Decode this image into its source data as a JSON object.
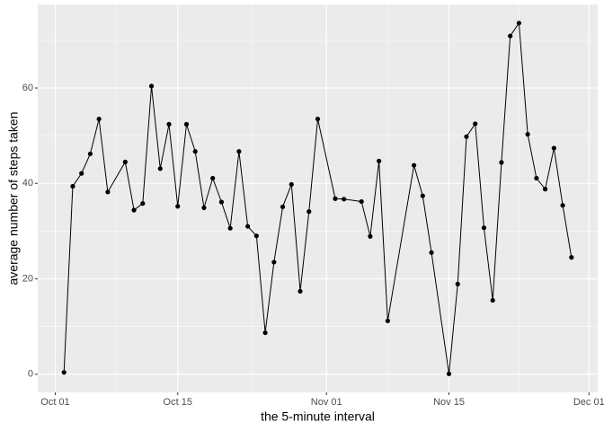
{
  "chart_data": {
    "type": "line",
    "x_label": "the 5-minute interval",
    "y_label": "average number of steps taken",
    "x": [
      "Oct 02",
      "Oct 03",
      "Oct 04",
      "Oct 05",
      "Oct 06",
      "Oct 07",
      "Oct 09",
      "Oct 10",
      "Oct 11",
      "Oct 12",
      "Oct 13",
      "Oct 14",
      "Oct 15",
      "Oct 16",
      "Oct 17",
      "Oct 18",
      "Oct 19",
      "Oct 20",
      "Oct 21",
      "Oct 22",
      "Oct 23",
      "Oct 24",
      "Oct 25",
      "Oct 26",
      "Oct 27",
      "Oct 28",
      "Oct 29",
      "Oct 30",
      "Oct 31",
      "Nov 02",
      "Nov 03",
      "Nov 05",
      "Nov 06",
      "Nov 07",
      "Nov 08",
      "Nov 11",
      "Nov 12",
      "Nov 13",
      "Nov 15",
      "Nov 16",
      "Nov 17",
      "Nov 18",
      "Nov 19",
      "Nov 20",
      "Nov 21",
      "Nov 22",
      "Nov 23",
      "Nov 24",
      "Nov 25",
      "Nov 26",
      "Nov 27",
      "Nov 28",
      "Nov 29"
    ],
    "values": [
      0.4,
      39.4,
      42.1,
      46.2,
      53.5,
      38.2,
      44.5,
      34.4,
      35.8,
      60.4,
      43.1,
      52.4,
      35.2,
      52.4,
      46.7,
      34.9,
      41.1,
      36.1,
      30.6,
      46.7,
      31.0,
      29.0,
      8.7,
      23.5,
      35.1,
      39.8,
      17.4,
      34.1,
      53.5,
      36.8,
      36.7,
      36.2,
      28.9,
      44.7,
      11.2,
      43.8,
      37.4,
      25.5,
      0.1,
      18.9,
      49.8,
      52.5,
      30.7,
      15.5,
      44.4,
      70.9,
      73.6,
      50.3,
      41.1,
      38.8,
      47.4,
      35.4,
      24.5
    ],
    "color": "#000000",
    "xlim": [
      "Sep 29",
      "Dec 02"
    ],
    "xticks": [
      "Oct 01",
      "Oct 15",
      "Nov 01",
      "Nov 15",
      "Dec 01"
    ],
    "ylim": [
      -3.8,
      77.5
    ],
    "yticks": [
      0,
      20,
      40,
      60
    ],
    "grid": true
  }
}
